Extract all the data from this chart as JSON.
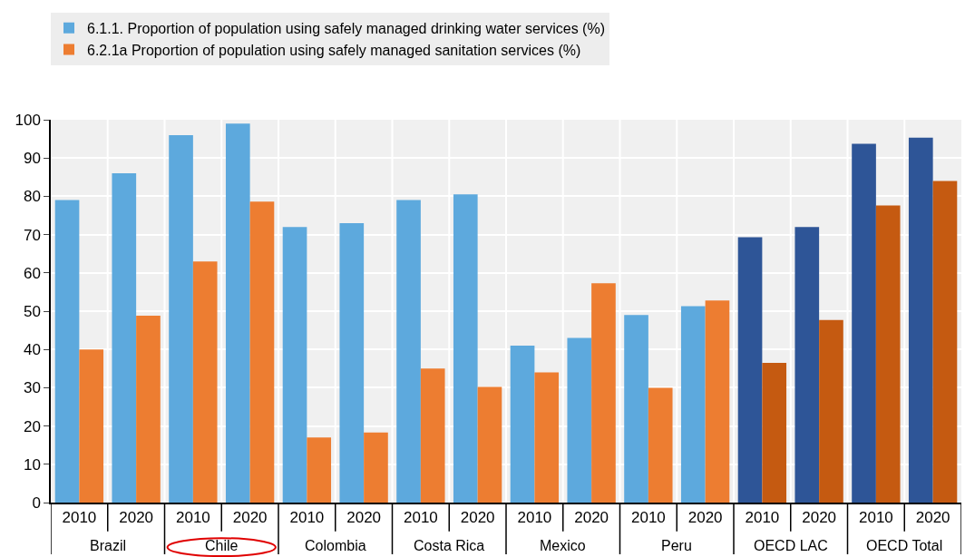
{
  "chart_data": {
    "type": "bar",
    "categories": [
      "2010",
      "2020",
      "2010",
      "2020",
      "2010",
      "2020",
      "2010",
      "2020",
      "2010",
      "2020",
      "2010",
      "2020",
      "2010",
      "2020",
      "2010",
      "2020"
    ],
    "series": [
      {
        "name": "6.1.1. Proportion of population using safely managed drinking water services (%)",
        "colors": [
          "#5da9dd",
          "#5da9dd",
          "#5da9dd",
          "#5da9dd",
          "#5da9dd",
          "#5da9dd",
          "#5da9dd",
          "#5da9dd",
          "#5da9dd",
          "#5da9dd",
          "#5da9dd",
          "#5da9dd",
          "#2e5597",
          "#2e5597",
          "#2e5597",
          "#2e5597"
        ],
        "values": [
          79,
          86,
          96,
          99,
          72,
          73,
          79,
          80.5,
          41,
          43,
          49,
          51.3,
          69.3,
          72,
          93.7,
          95.3
        ]
      },
      {
        "name": "6.2.1a Proportion of population using safely managed sanitation services (%)",
        "colors": [
          "#ed7d31",
          "#ed7d31",
          "#ed7d31",
          "#ed7d31",
          "#ed7d31",
          "#ed7d31",
          "#ed7d31",
          "#ed7d31",
          "#ed7d31",
          "#ed7d31",
          "#ed7d31",
          "#ed7d31",
          "#c55a11",
          "#c55a11",
          "#c55a11",
          "#c55a11"
        ],
        "values": [
          40,
          48.8,
          63,
          78.6,
          17,
          18.3,
          35,
          30.2,
          34,
          57.3,
          30,
          52.8,
          36.5,
          47.7,
          77.6,
          84
        ]
      }
    ],
    "annotations": [
      "Brazil",
      "Chile",
      "Colombia",
      "Costa Rica",
      "Mexico",
      "Peru",
      "OECD LAC",
      "OECD Total"
    ],
    "ylim": [
      0,
      100
    ],
    "yticks": [
      0,
      10,
      20,
      30,
      40,
      50,
      60,
      70,
      80,
      90,
      100
    ],
    "grid": true,
    "legend": "top"
  }
}
